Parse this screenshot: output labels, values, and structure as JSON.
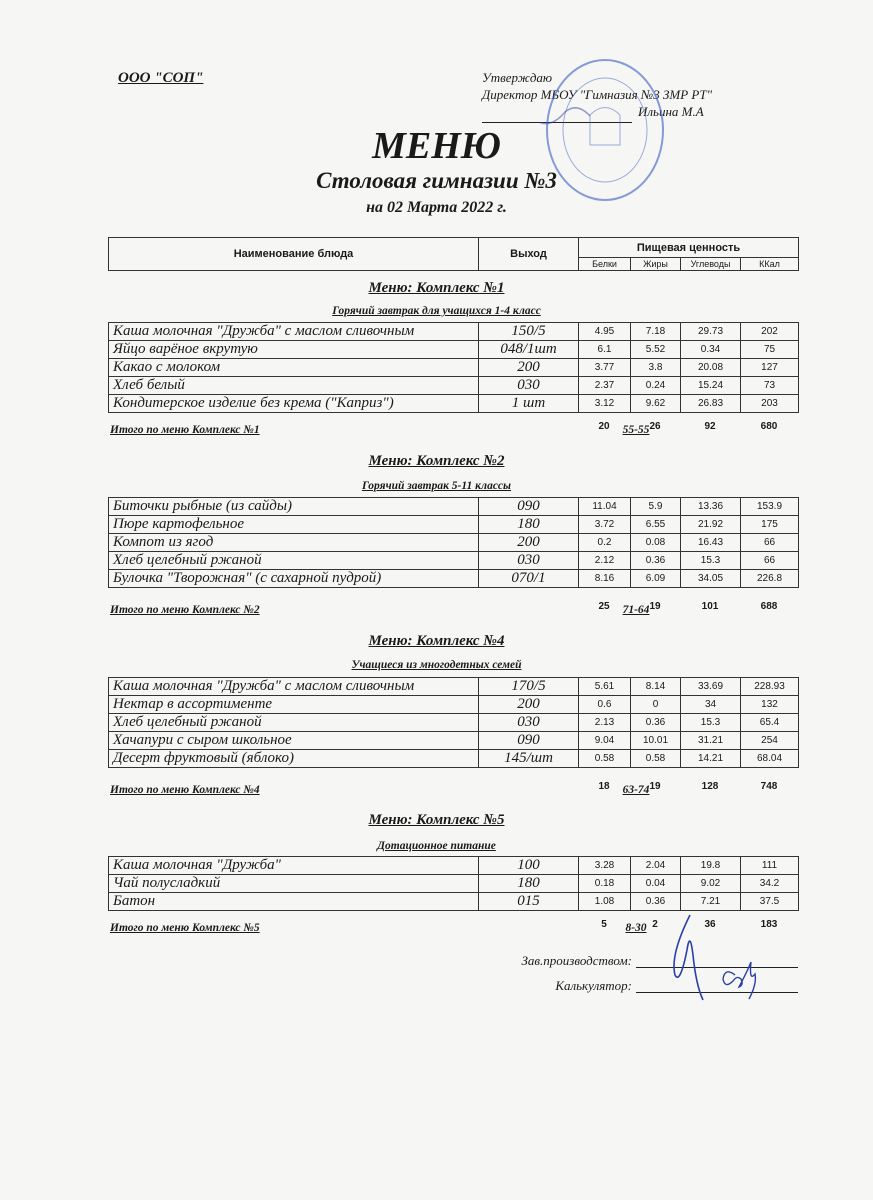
{
  "header": {
    "organization": "ООО \"СОП\"",
    "approve": "Утверждаю",
    "director": "Директор МБОУ \"Гимназия №3 ЗМР РТ\"",
    "director_name": "Ильина М.А"
  },
  "title": "МЕНЮ",
  "subtitle": "Столовая гимназии №3",
  "date": "на 02 Марта 2022 г.",
  "table_header": {
    "name": "Наименование блюда",
    "output": "Выход",
    "nutrition": "Пищевая ценность",
    "proteins": "Белки",
    "fats": "Жиры",
    "carbs": "Углеводы",
    "kcal": "ККал"
  },
  "sections": [
    {
      "title": "Меню: Комплекс №1",
      "subtitle": "Горячий завтрак для учащихся 1-4 класс",
      "rows": [
        {
          "name": "Каша молочная \"Дружба\" с маслом сливочным",
          "output": "150/5",
          "proteins": "4.95",
          "fats": "7.18",
          "carbs": "29.73",
          "kcal": "202"
        },
        {
          "name": "Яйцо варёное вкрутую",
          "output": "048/1шт",
          "proteins": "6.1",
          "fats": "5.52",
          "carbs": "0.34",
          "kcal": "75"
        },
        {
          "name": "Какао с  молоком",
          "output": "200",
          "proteins": "3.77",
          "fats": "3.8",
          "carbs": "20.08",
          "kcal": "127"
        },
        {
          "name": "Хлеб белый",
          "output": "030",
          "proteins": "2.37",
          "fats": "0.24",
          "carbs": "15.24",
          "kcal": "73"
        },
        {
          "name": "Кондитерское изделие без крема (\"Каприз\")",
          "output": "1 шт",
          "proteins": "3.12",
          "fats": "9.62",
          "carbs": "26.83",
          "kcal": "203"
        }
      ],
      "total": {
        "label": "Итого по меню Комплекс №1",
        "output": "55-55",
        "proteins": "20",
        "fats": "26",
        "carbs": "92",
        "kcal": "680"
      }
    },
    {
      "title": "Меню: Комплекс №2",
      "subtitle": "Горячий завтрак 5-11 классы",
      "rows": [
        {
          "name": "Биточки рыбные (из сайды)",
          "output": "090",
          "proteins": "11.04",
          "fats": "5.9",
          "carbs": "13.36",
          "kcal": "153.9"
        },
        {
          "name": "Пюре картофельное",
          "output": "180",
          "proteins": "3.72",
          "fats": "6.55",
          "carbs": "21.92",
          "kcal": "175"
        },
        {
          "name": "Компот из  ягод",
          "output": "200",
          "proteins": "0.2",
          "fats": "0.08",
          "carbs": "16.43",
          "kcal": "66"
        },
        {
          "name": "Хлеб  целебный ржаной",
          "output": "030",
          "proteins": "2.12",
          "fats": "0.36",
          "carbs": "15.3",
          "kcal": "66"
        },
        {
          "name": "Булочка \"Творожная\" (с сахарной пудрой)",
          "output": "070/1",
          "proteins": "8.16",
          "fats": "6.09",
          "carbs": "34.05",
          "kcal": "226.8"
        }
      ],
      "total": {
        "label": "Итого по меню Комплекс №2",
        "output": "71-64",
        "proteins": "25",
        "fats": "19",
        "carbs": "101",
        "kcal": "688"
      }
    },
    {
      "title": "Меню: Комплекс №4",
      "subtitle": "Учащиеся из многодетных семей",
      "rows": [
        {
          "name": "Каша молочная \"Дружба\" с маслом сливочным",
          "output": "170/5",
          "proteins": "5.61",
          "fats": "8.14",
          "carbs": "33.69",
          "kcal": "228.93"
        },
        {
          "name": "Нектар в ассортименте",
          "output": "200",
          "proteins": "0.6",
          "fats": "0",
          "carbs": "34",
          "kcal": "132"
        },
        {
          "name": "Хлеб  целебный ржаной",
          "output": "030",
          "proteins": "2.13",
          "fats": "0.36",
          "carbs": "15.3",
          "kcal": "65.4"
        },
        {
          "name": "Хачапури с сыром школьное",
          "output": "090",
          "proteins": "9.04",
          "fats": "10.01",
          "carbs": "31.21",
          "kcal": "254"
        },
        {
          "name": "Десерт фруктовый (яблоко)",
          "output": "145/шт",
          "proteins": "0.58",
          "fats": "0.58",
          "carbs": "14.21",
          "kcal": "68.04"
        }
      ],
      "total": {
        "label": "Итого по меню Комплекс №4",
        "output": "63-74",
        "proteins": "18",
        "fats": "19",
        "carbs": "128",
        "kcal": "748"
      }
    },
    {
      "title": "Меню: Комплекс №5",
      "subtitle": "Дотационное питание",
      "rows": [
        {
          "name": "Каша молочная \"Дружба\"",
          "output": "100",
          "proteins": "3.28",
          "fats": "2.04",
          "carbs": "19.8",
          "kcal": "111"
        },
        {
          "name": "Чай полусладкий",
          "output": "180",
          "proteins": "0.18",
          "fats": "0.04",
          "carbs": "9.02",
          "kcal": "34.2"
        },
        {
          "name": "Батон",
          "output": "015",
          "proteins": "1.08",
          "fats": "0.36",
          "carbs": "7.21",
          "kcal": "37.5"
        }
      ],
      "total": {
        "label": "Итого по меню Комплекс №5",
        "output": "8-30",
        "proteins": "5",
        "fats": "2",
        "carbs": "36",
        "kcal": "183"
      }
    }
  ],
  "signatures": {
    "production_head": "Зав.производством:",
    "calculator": "Калькулятор:"
  },
  "colors": {
    "ink": "#1a1a1a",
    "stamp": "#3b5fc4",
    "signature": "#2a3fa8"
  }
}
